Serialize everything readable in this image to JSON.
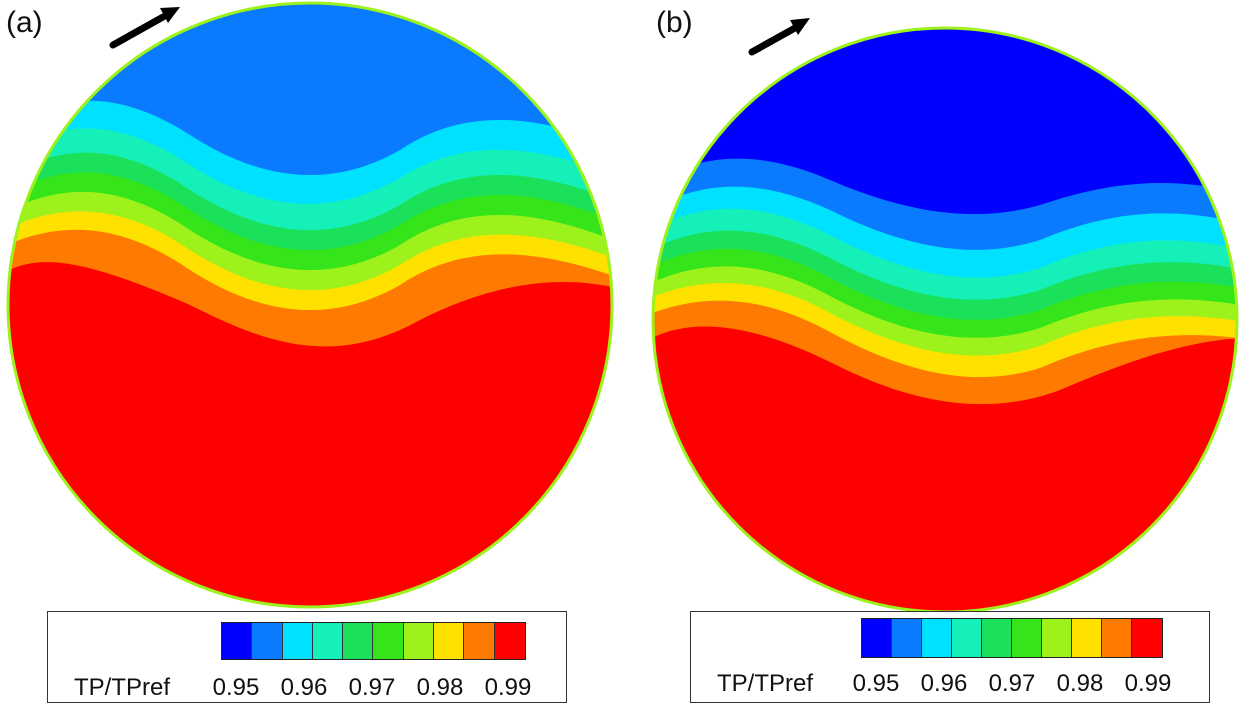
{
  "colors": {
    "levels": [
      "#0000ff",
      "#0a7bff",
      "#00e1ff",
      "#15f0b8",
      "#1ae05a",
      "#35e51a",
      "#9cf21a",
      "#ffe100",
      "#ff7a00",
      "#ff0000"
    ]
  },
  "panels": [
    {
      "label": "(a)",
      "arrow_icon": "flow-arrow-icon",
      "legend": {
        "title": "TP/TPref",
        "ticks": [
          "0.95",
          "0.96",
          "0.97",
          "0.98",
          "0.99"
        ]
      }
    },
    {
      "label": "(b)",
      "arrow_icon": "flow-arrow-icon",
      "legend": {
        "title": "TP/TPref",
        "ticks": [
          "0.95",
          "0.96",
          "0.97",
          "0.98",
          "0.99"
        ]
      }
    }
  ]
}
